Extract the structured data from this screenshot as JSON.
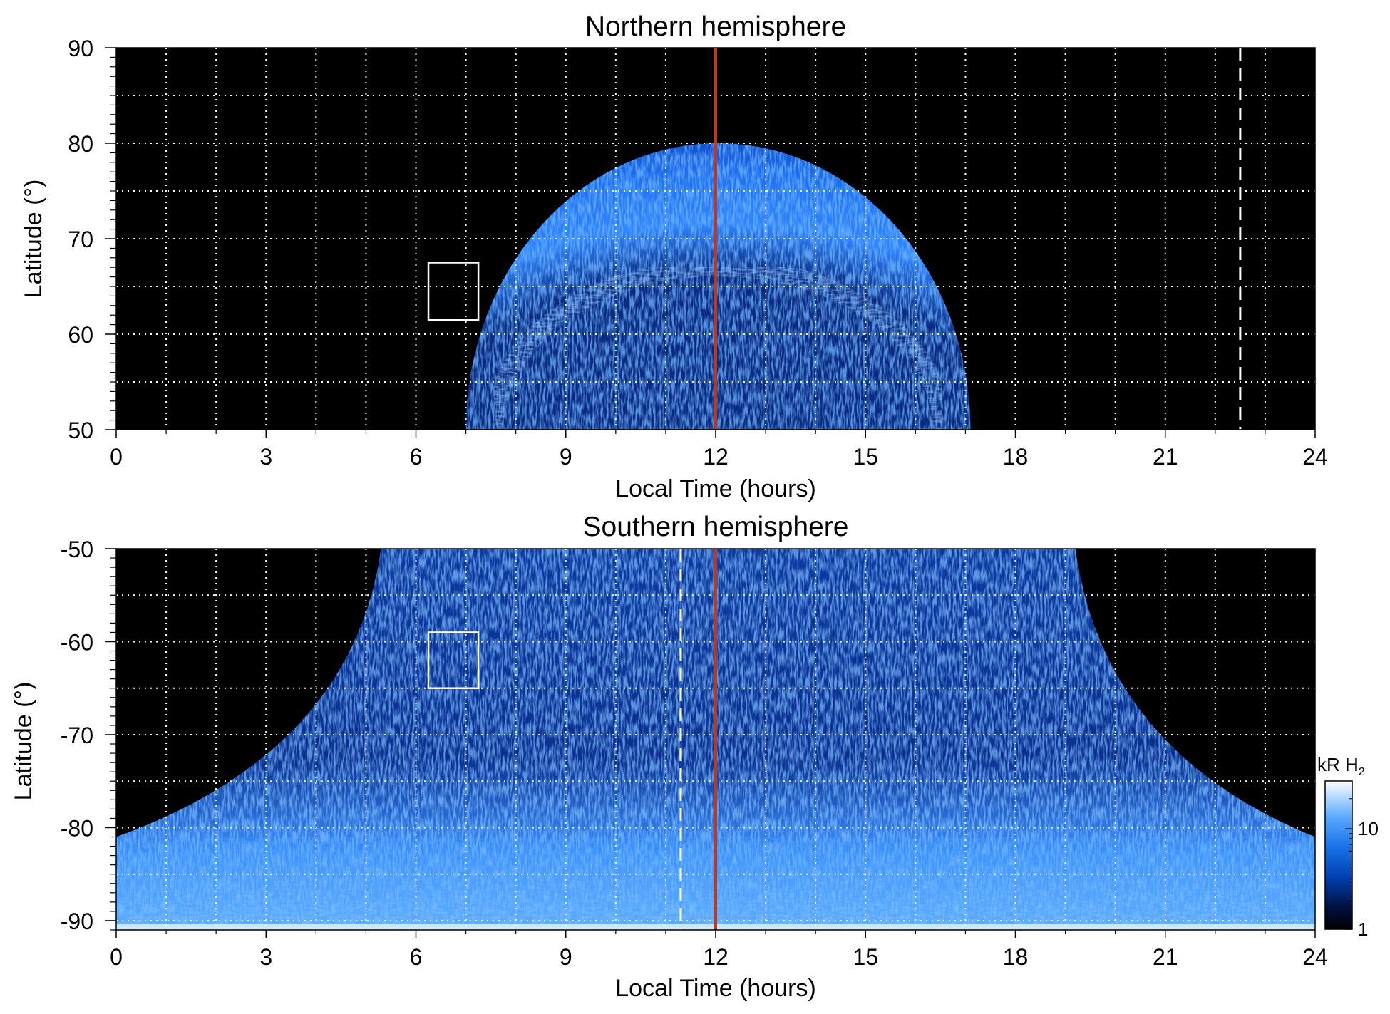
{
  "chart_data": [
    {
      "type": "heatmap",
      "title": "Northern hemisphere",
      "xlabel": "Local Time (hours)",
      "ylabel": "Latitude (°)",
      "xlim": [
        0,
        24
      ],
      "ylim": [
        50,
        90
      ],
      "x_ticks": [
        "0",
        "3",
        "6",
        "9",
        "12",
        "15",
        "18",
        "21",
        "24"
      ],
      "y_ticks": [
        "50",
        "60",
        "70",
        "80",
        "90"
      ],
      "grid": true,
      "background": "#000000",
      "emission_region": {
        "lt_range": [
          7.0,
          17.1
        ],
        "max_latitude": 80,
        "bright_arc_latitude": 67
      },
      "noon_line": {
        "x": 12,
        "color": "#cc3311"
      },
      "dashed_line": {
        "x": 22.5,
        "color": "#ffffff"
      },
      "box": {
        "x": [
          6.25,
          7.25
        ],
        "y": [
          61.5,
          67.5
        ],
        "color": "#ffffff"
      }
    },
    {
      "type": "heatmap",
      "title": "Southern hemisphere",
      "xlabel": "Local Time (hours)",
      "ylabel": "Latitude (°)",
      "xlim": [
        0,
        24
      ],
      "ylim": [
        -91,
        -50
      ],
      "x_ticks": [
        "0",
        "3",
        "6",
        "9",
        "12",
        "15",
        "18",
        "21",
        "24"
      ],
      "y_ticks": [
        "-90",
        "-80",
        "-70",
        "-60",
        "-50"
      ],
      "grid": true,
      "background": "#000000",
      "emission_region": {
        "lt_range": [
          5.3,
          19.2
        ],
        "polar_cap_below": -81
      },
      "noon_line": {
        "x": 12,
        "color": "#cc3311"
      },
      "dashed_line": {
        "x": 11.3,
        "color": "#ffffff"
      },
      "box": {
        "x": [
          6.25,
          7.25
        ],
        "y": [
          -65,
          -59
        ],
        "color": "#ffffff"
      }
    }
  ],
  "colorbar": {
    "label_main": "kR H",
    "label_sub": "2",
    "scale": "log",
    "range": [
      1,
      30
    ],
    "ticks": [
      "1",
      "10"
    ],
    "colors": [
      "#000000",
      "#001040",
      "#0040b0",
      "#1870e8",
      "#58a8ff",
      "#b8dcff",
      "#ffffff"
    ]
  }
}
